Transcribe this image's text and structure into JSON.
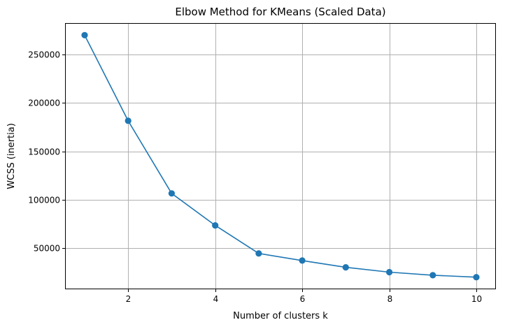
{
  "chart_data": {
    "type": "line",
    "title": "Elbow Method for KMeans (Scaled Data)",
    "xlabel": "Number of clusters k",
    "ylabel": "WCSS (inertia)",
    "x": [
      1,
      2,
      3,
      4,
      5,
      6,
      7,
      8,
      9,
      10
    ],
    "series": [
      {
        "values": [
          270000,
          181500,
          106500,
          73500,
          44500,
          37200,
          30200,
          25200,
          22000,
          20000
        ],
        "color": "#1f77b4",
        "marker": "circle"
      }
    ],
    "xlim": [
      0.55,
      10.45
    ],
    "ylim": [
      7500,
      282500
    ],
    "xticks": [
      2,
      4,
      6,
      8,
      10
    ],
    "xtick_labels": [
      "2",
      "4",
      "6",
      "8",
      "10"
    ],
    "yticks": [
      50000,
      100000,
      150000,
      200000,
      250000
    ],
    "ytick_labels": [
      "50000",
      "100000",
      "150000",
      "200000",
      "250000"
    ],
    "grid": true,
    "grid_color": "#b0b0b0",
    "background": "#ffffff"
  }
}
